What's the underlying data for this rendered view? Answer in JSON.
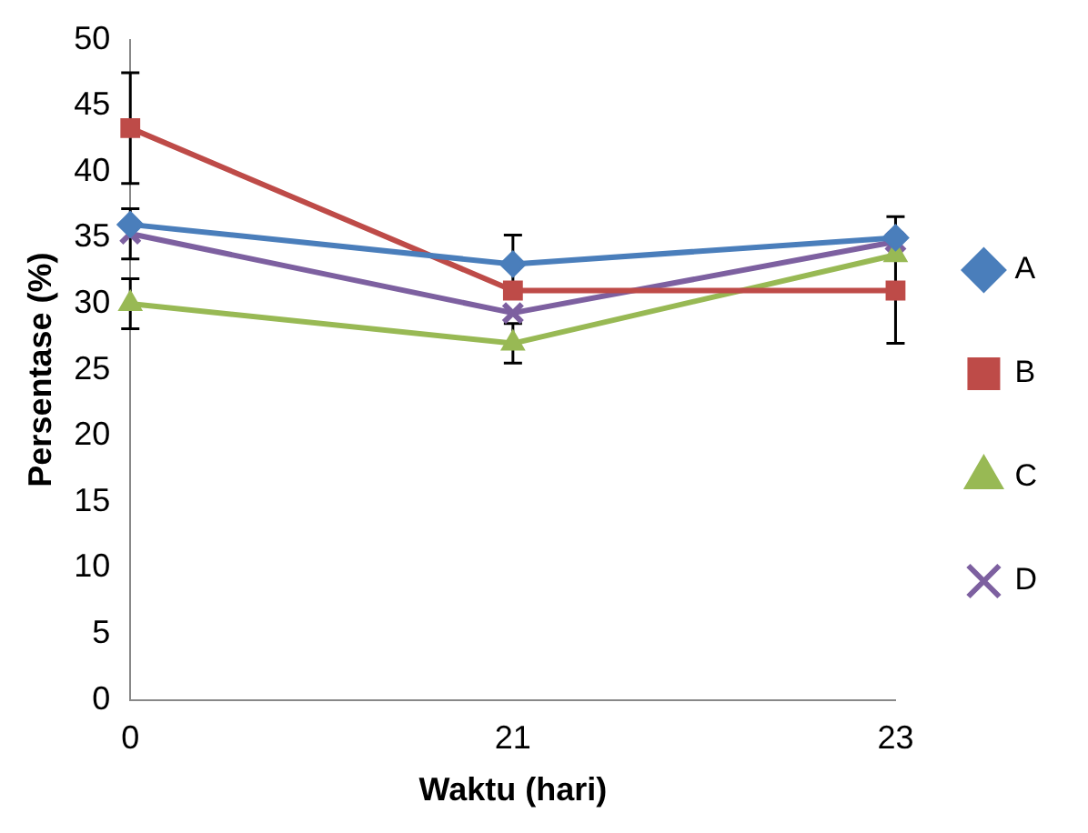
{
  "chart_data": {
    "type": "line",
    "xlabel": "Waktu (hari)",
    "ylabel": "Persentase (%)",
    "categories": [
      "0",
      "21",
      "23"
    ],
    "series": [
      {
        "name": "A",
        "color": "#4a7ebb",
        "marker": "diamond",
        "values": [
          36,
          33,
          35
        ],
        "errors": [
          null,
          2.2,
          1.6
        ]
      },
      {
        "name": "B",
        "color": "#be4b48",
        "marker": "square",
        "values": [
          43.3,
          31,
          31
        ],
        "errors": [
          4.2,
          null,
          4
        ]
      },
      {
        "name": "C",
        "color": "#98b954",
        "marker": "triangle",
        "values": [
          30,
          27,
          33.7
        ],
        "errors": [
          1.9,
          1.5,
          null
        ]
      },
      {
        "name": "D",
        "color": "#7d60a0",
        "marker": "cross",
        "values": [
          35.3,
          29.3,
          34.7
        ],
        "errors": [
          1.9,
          null,
          null
        ]
      }
    ],
    "ylim": [
      0,
      50
    ],
    "yticks": [
      0,
      5,
      10,
      15,
      20,
      25,
      30,
      35,
      40,
      45,
      50
    ],
    "grid": false,
    "legend": "right"
  }
}
